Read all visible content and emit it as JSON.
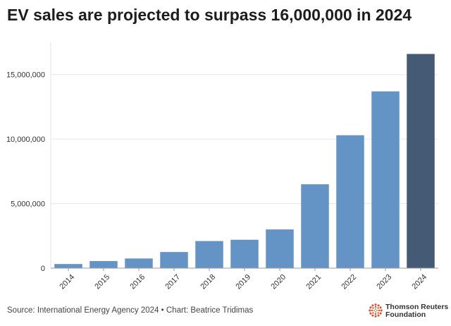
{
  "title": "EV sales are projected to surpass 16,000,000 in 2024",
  "source": "Source: International Energy Agency 2024 • Chart: Beatrice Tridimas",
  "logo": {
    "line1": "Thomson Reuters",
    "line2": "Foundation"
  },
  "colors": {
    "bar": "#6394c5",
    "highlight": "#455a74",
    "grid": "#e6e6e6",
    "axis": "#999999",
    "logo_accent": "#d64f2a"
  },
  "chart_data": {
    "type": "bar",
    "title": "EV sales are projected to surpass 16,000,000 in 2024",
    "xlabel": "",
    "ylabel": "",
    "categories": [
      "2014",
      "2015",
      "2016",
      "2017",
      "2018",
      "2019",
      "2020",
      "2021",
      "2022",
      "2023",
      "2024"
    ],
    "values": [
      320000,
      550000,
      750000,
      1250000,
      2100000,
      2200000,
      3000000,
      6500000,
      10300000,
      13700000,
      16600000
    ],
    "highlight_category": "2024",
    "ylim": [
      0,
      17500000
    ],
    "yticks": [
      0,
      5000000,
      10000000,
      15000000
    ],
    "ytick_labels": [
      "0",
      "5,000,000",
      "10,000,000",
      "15,000,000"
    ],
    "grid": true
  }
}
